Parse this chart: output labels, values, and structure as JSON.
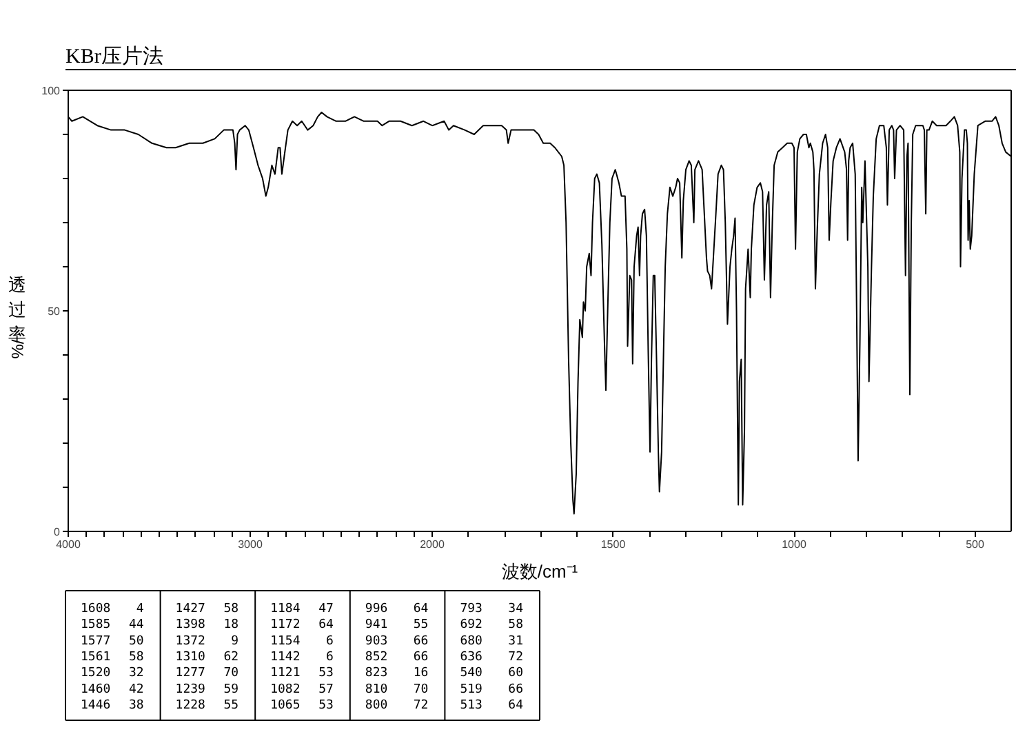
{
  "chart_data": [
    {
      "type": "line",
      "title": "KBr压片法",
      "ylabel": "透过率/%",
      "color": "#000000",
      "grid": false,
      "xlim": [
        4000,
        2000
      ],
      "ylim": [
        0,
        100
      ],
      "xticks": [
        4000,
        {
          "value": 3900,
          "label": null
        },
        {
          "value": 3800,
          "label": null
        },
        {
          "value": 3700,
          "label": null
        },
        {
          "value": 3600,
          "label": null
        },
        {
          "value": 3500,
          "label": null
        },
        {
          "value": 3400,
          "label": null
        },
        {
          "value": 3300,
          "label": null
        },
        {
          "value": 3200,
          "label": null
        },
        {
          "value": 3100,
          "label": null
        },
        3000,
        {
          "value": 2900,
          "label": null
        },
        {
          "value": 2800,
          "label": null
        },
        {
          "value": 2700,
          "label": null
        },
        {
          "value": 2600,
          "label": null
        },
        {
          "value": 2500,
          "label": null
        },
        {
          "value": 2400,
          "label": null
        },
        {
          "value": 2300,
          "label": null
        },
        {
          "value": 2200,
          "label": null
        },
        {
          "value": 2100,
          "label": null
        },
        2000
      ],
      "yticks": [
        0,
        {
          "value": 10,
          "label": null
        },
        {
          "value": 20,
          "label": null
        },
        {
          "value": 30,
          "label": null
        },
        {
          "value": 40,
          "label": null
        },
        50,
        {
          "value": 60,
          "label": null
        },
        {
          "value": 70,
          "label": null
        },
        {
          "value": 80,
          "label": null
        },
        {
          "value": 90,
          "label": null
        },
        100
      ],
      "x": [
        4000,
        3980,
        3920,
        3840,
        3765,
        3690,
        3615,
        3540,
        3460,
        3410,
        3335,
        3260,
        3195,
        3145,
        3110,
        3095,
        3085,
        3078,
        3070,
        3058,
        3028,
        3008,
        2982,
        2957,
        2932,
        2914,
        2901,
        2881,
        2864,
        2846,
        2836,
        2826,
        2813,
        2793,
        2768,
        2742,
        2717,
        2684,
        2654,
        2629,
        2608,
        2578,
        2528,
        2477,
        2427,
        2376,
        2326,
        2301,
        2275,
        2237,
        2174,
        2111,
        2048,
        2000
      ],
      "values": [
        94,
        93,
        94,
        92,
        91,
        91,
        90,
        88,
        87,
        87,
        88,
        88,
        89,
        91,
        91,
        91,
        88,
        82,
        90,
        91,
        92,
        91,
        87,
        83,
        80,
        76,
        78,
        83,
        81,
        87,
        87,
        81,
        85,
        91,
        93,
        92,
        93,
        91,
        92,
        94,
        95,
        94,
        93,
        93,
        94,
        93,
        93,
        93,
        92,
        93,
        93,
        92,
        93,
        92
      ]
    },
    {
      "type": "line",
      "xlabel": "波数/cm⁻¹",
      "color": "#000000",
      "grid": false,
      "tick_labels": "x",
      "xlim": [
        2000,
        400
      ],
      "ylim": [
        0,
        100
      ],
      "xticks": [
        {
          "value": 1900,
          "label": null
        },
        {
          "value": 1800,
          "label": null
        },
        {
          "value": 1700,
          "label": null
        },
        {
          "value": 1600,
          "label": null
        },
        1500,
        {
          "value": 1400,
          "label": null
        },
        {
          "value": 1300,
          "label": null
        },
        {
          "value": 1200,
          "label": null
        },
        {
          "value": 1100,
          "label": null
        },
        1000,
        {
          "value": 900,
          "label": null
        },
        {
          "value": 800,
          "label": null
        },
        {
          "value": 700,
          "label": null
        },
        {
          "value": 600,
          "label": null
        },
        500
      ],
      "x": [
        2000,
        1967,
        1954,
        1941,
        1910,
        1884,
        1859,
        1827,
        1808,
        1795,
        1790,
        1782,
        1763,
        1738,
        1719,
        1706,
        1693,
        1674,
        1661,
        1642,
        1636,
        1630,
        1623,
        1617,
        1611,
        1608,
        1602,
        1597,
        1592,
        1585,
        1582,
        1577,
        1573,
        1566,
        1561,
        1557,
        1551,
        1545,
        1538,
        1531,
        1524,
        1520,
        1515,
        1509,
        1503,
        1494,
        1484,
        1477,
        1467,
        1462,
        1460,
        1454,
        1449,
        1446,
        1442,
        1435,
        1431,
        1427,
        1424,
        1419,
        1413,
        1408,
        1403,
        1398,
        1394,
        1389,
        1385,
        1380,
        1375,
        1372,
        1366,
        1361,
        1356,
        1350,
        1343,
        1335,
        1327,
        1322,
        1316,
        1310,
        1306,
        1299,
        1290,
        1284,
        1277,
        1274,
        1264,
        1254,
        1248,
        1242,
        1239,
        1233,
        1228,
        1223,
        1216,
        1210,
        1201,
        1195,
        1190,
        1184,
        1177,
        1172,
        1167,
        1163,
        1159,
        1154,
        1151,
        1146,
        1142,
        1137,
        1134,
        1127,
        1121,
        1118,
        1111,
        1102,
        1093,
        1087,
        1082,
        1076,
        1070,
        1065,
        1060,
        1055,
        1045,
        1032,
        1019,
        1006,
        1000,
        996,
        991,
        984,
        974,
        966,
        959,
        955,
        948,
        945,
        941,
        936,
        930,
        921,
        913,
        907,
        903,
        898,
        892,
        883,
        873,
        860,
        855,
        852,
        849,
        845,
        838,
        831,
        827,
        823,
        818,
        813,
        810,
        804,
        800,
        796,
        793,
        786,
        781,
        773,
        764,
        752,
        745,
        742,
        737,
        730,
        725,
        722,
        717,
        707,
        697,
        692,
        688,
        685,
        680,
        676,
        672,
        664,
        655,
        644,
        640,
        636,
        633,
        627,
        618,
        606,
        593,
        580,
        568,
        557,
        548,
        542,
        540,
        536,
        529,
        524,
        521,
        519,
        516,
        513,
        509,
        502,
        492,
        472,
        453,
        443,
        434,
        425,
        415,
        400
      ],
      "values": [
        92,
        93,
        91,
        92,
        91,
        90,
        92,
        92,
        92,
        91,
        88,
        91,
        91,
        91,
        91,
        90,
        88,
        88,
        87,
        85,
        83,
        70,
        39,
        20,
        7,
        4,
        13,
        34,
        48,
        44,
        52,
        50,
        60,
        63,
        58,
        70,
        80,
        81,
        79,
        65,
        43,
        32,
        50,
        70,
        80,
        82,
        79,
        76,
        76,
        64,
        42,
        58,
        57,
        38,
        60,
        67,
        69,
        58,
        67,
        72,
        73,
        67,
        41,
        18,
        39,
        58,
        58,
        39,
        18,
        9,
        18,
        39,
        60,
        72,
        78,
        76,
        78,
        80,
        79,
        62,
        75,
        82,
        84,
        83,
        70,
        82,
        84,
        82,
        72,
        62,
        59,
        58,
        55,
        62,
        72,
        81,
        83,
        82,
        70,
        47,
        60,
        64,
        67,
        71,
        50,
        6,
        34,
        39,
        6,
        23,
        55,
        64,
        53,
        64,
        74,
        78,
        79,
        77,
        57,
        74,
        77,
        53,
        70,
        83,
        86,
        87,
        88,
        88,
        87,
        64,
        86,
        89,
        90,
        90,
        87,
        88,
        86,
        82,
        55,
        68,
        81,
        88,
        90,
        87,
        66,
        75,
        84,
        87,
        89,
        86,
        82,
        66,
        84,
        87,
        88,
        81,
        50,
        16,
        43,
        78,
        70,
        84,
        72,
        60,
        34,
        60,
        76,
        89,
        92,
        92,
        87,
        74,
        91,
        92,
        91,
        80,
        91,
        92,
        91,
        58,
        85,
        88,
        31,
        70,
        90,
        92,
        92,
        92,
        91,
        72,
        91,
        91,
        93,
        92,
        92,
        92,
        93,
        94,
        92,
        86,
        60,
        80,
        91,
        91,
        88,
        66,
        75,
        64,
        67,
        81,
        92,
        93,
        93,
        94,
        92,
        88,
        86,
        85
      ]
    },
    {
      "type": "other",
      "annotations": [
        "1608 4",
        "1585 44",
        "1577 50",
        "1561 58",
        "1520 32",
        "1460 42",
        "1446 38",
        "1427 58",
        "1398 18",
        "1372 9",
        "1310 62",
        "1277 70",
        "1239 59",
        "1228 55",
        "1184 47",
        "1172 64",
        "1154 6",
        "1142 6",
        "1121 53",
        "1082 57",
        "1065 53",
        "996 64",
        "941 55",
        "903 66",
        "852 66",
        "823 16",
        "810 70",
        "800 72",
        "793 34",
        "692 58",
        "680 31",
        "636 72",
        "540 60",
        "519 66",
        "513 64"
      ]
    }
  ]
}
